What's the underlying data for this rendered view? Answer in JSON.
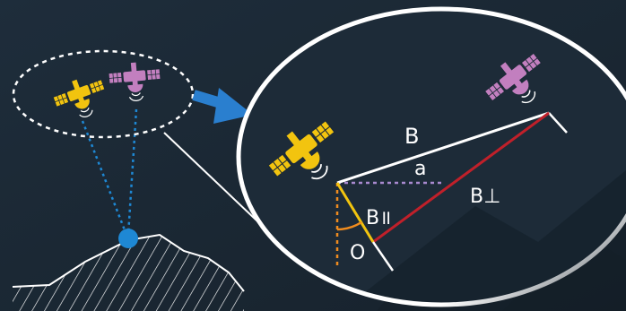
{
  "labels": {
    "baseline": "B",
    "alpha": "a",
    "perpendicular": "B⊥",
    "parallel": "B॥",
    "theta": "O"
  },
  "colors": {
    "background": "#1c2a36",
    "satellite_master": "#f2c40f",
    "satellite_slave": "#c27fbf",
    "ground_point": "#1e88d4",
    "line_of_sight_dots": "#1e88d4",
    "arrow": "#2a7fcf",
    "baseline_line": "#ffffff",
    "perpendicular_line": "#c0202a",
    "parallel_line": "#f2c40f",
    "alpha_line": "#a98ad0",
    "vertical_line": "#f08c1e",
    "theta_arc": "#f08c1e"
  },
  "icons": {
    "satellite_left": "satellite-icon",
    "satellite_right": "satellite-icon",
    "satellite_zoom_master": "satellite-icon",
    "satellite_zoom_slave": "satellite-icon",
    "arrow": "arrow-right-icon",
    "ground": "ground-point-icon"
  }
}
